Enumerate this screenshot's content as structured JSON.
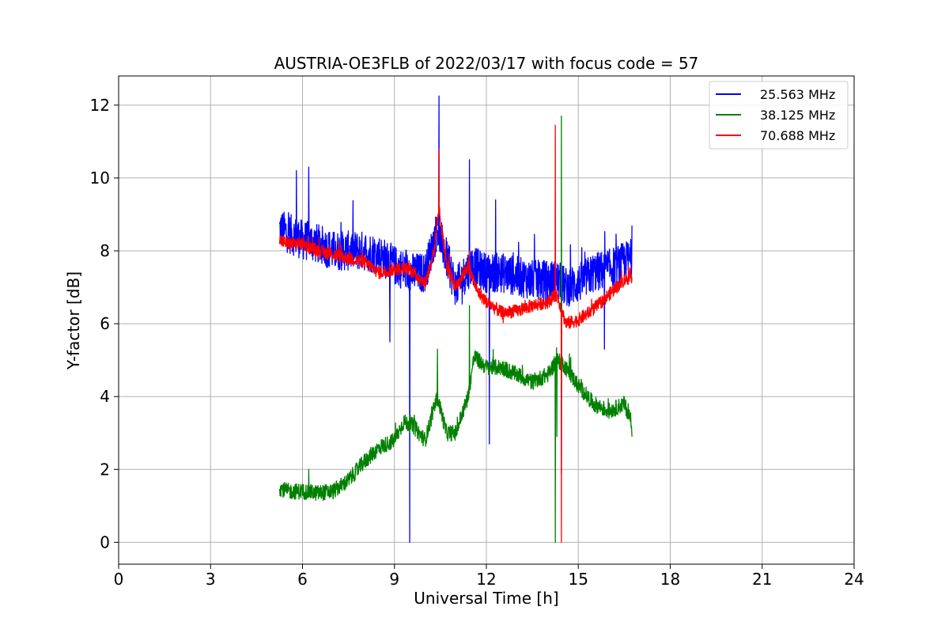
{
  "chart_data": {
    "type": "line",
    "title": "AUSTRIA-OE3FLB of 2022/03/17 with focus code = 57",
    "xlabel": "Universal Time [h]",
    "ylabel": "Y-factor [dB]",
    "xlim": [
      0,
      24
    ],
    "ylim": [
      -0.6,
      12.8
    ],
    "xticks": [
      0,
      3,
      6,
      9,
      12,
      15,
      18,
      21,
      24
    ],
    "yticks": [
      0,
      2,
      4,
      6,
      8,
      10,
      12
    ],
    "grid": true,
    "legend_position": "top-right",
    "series": [
      {
        "name": "25.563 MHz",
        "color": "#0000ff",
        "noise": 0.55,
        "points": [
          [
            5.25,
            8.6
          ],
          [
            5.5,
            8.5
          ],
          [
            6.0,
            8.3
          ],
          [
            6.5,
            8.2
          ],
          [
            7.0,
            8.0
          ],
          [
            7.5,
            8.0
          ],
          [
            8.0,
            8.0
          ],
          [
            8.5,
            7.9
          ],
          [
            9.0,
            7.6
          ],
          [
            9.5,
            7.4
          ],
          [
            10.0,
            7.4
          ],
          [
            10.4,
            8.6
          ],
          [
            10.7,
            7.8
          ],
          [
            11.0,
            7.0
          ],
          [
            11.5,
            7.6
          ],
          [
            12.0,
            7.4
          ],
          [
            12.5,
            7.4
          ],
          [
            13.0,
            7.3
          ],
          [
            13.5,
            7.2
          ],
          [
            14.0,
            7.2
          ],
          [
            14.3,
            7.2
          ],
          [
            14.6,
            7.0
          ],
          [
            15.0,
            7.1
          ],
          [
            15.5,
            7.4
          ],
          [
            16.0,
            7.5
          ],
          [
            16.5,
            7.7
          ],
          [
            16.75,
            7.8
          ]
        ],
        "spikes": [
          [
            9.5,
            0.0
          ],
          [
            10.45,
            12.25
          ],
          [
            11.45,
            10.5
          ],
          [
            12.1,
            2.7
          ],
          [
            14.45,
            1.9
          ],
          [
            15.85,
            5.3
          ],
          [
            8.85,
            5.5
          ],
          [
            6.2,
            10.3
          ],
          [
            5.8,
            10.2
          ],
          [
            12.3,
            9.4
          ]
        ]
      },
      {
        "name": "38.125 MHz",
        "color": "#008000",
        "noise": 0.22,
        "points": [
          [
            5.25,
            1.5
          ],
          [
            5.5,
            1.4
          ],
          [
            6.0,
            1.4
          ],
          [
            6.5,
            1.35
          ],
          [
            7.0,
            1.4
          ],
          [
            7.5,
            1.7
          ],
          [
            8.0,
            2.2
          ],
          [
            8.5,
            2.6
          ],
          [
            9.0,
            2.8
          ],
          [
            9.3,
            3.3
          ],
          [
            9.6,
            3.2
          ],
          [
            10.0,
            2.8
          ],
          [
            10.4,
            4.0
          ],
          [
            10.7,
            3.0
          ],
          [
            11.0,
            3.0
          ],
          [
            11.4,
            4.0
          ],
          [
            11.6,
            5.1
          ],
          [
            12.0,
            4.8
          ],
          [
            12.5,
            4.8
          ],
          [
            13.0,
            4.6
          ],
          [
            13.5,
            4.4
          ],
          [
            14.0,
            4.6
          ],
          [
            14.3,
            5.0
          ],
          [
            14.5,
            4.9
          ],
          [
            15.0,
            4.3
          ],
          [
            15.5,
            3.8
          ],
          [
            16.0,
            3.6
          ],
          [
            16.5,
            3.8
          ],
          [
            16.75,
            3.3
          ]
        ],
        "spikes": [
          [
            14.25,
            0.0
          ],
          [
            14.45,
            11.7
          ],
          [
            14.3,
            2.9
          ],
          [
            10.4,
            5.3
          ],
          [
            11.45,
            6.5
          ],
          [
            6.2,
            2.0
          ],
          [
            16.75,
            2.9
          ]
        ]
      },
      {
        "name": "70.688 MHz",
        "color": "#ff0000",
        "noise": 0.18,
        "points": [
          [
            5.25,
            8.3
          ],
          [
            5.5,
            8.2
          ],
          [
            6.0,
            8.2
          ],
          [
            6.5,
            8.0
          ],
          [
            7.0,
            7.9
          ],
          [
            7.5,
            7.8
          ],
          [
            8.0,
            7.7
          ],
          [
            8.5,
            7.4
          ],
          [
            9.0,
            7.5
          ],
          [
            9.5,
            7.5
          ],
          [
            10.0,
            7.1
          ],
          [
            10.3,
            8.0
          ],
          [
            10.45,
            9.2
          ],
          [
            10.7,
            7.6
          ],
          [
            11.0,
            7.0
          ],
          [
            11.4,
            7.6
          ],
          [
            11.7,
            6.9
          ],
          [
            12.0,
            6.6
          ],
          [
            12.5,
            6.3
          ],
          [
            13.0,
            6.35
          ],
          [
            13.5,
            6.5
          ],
          [
            14.0,
            6.6
          ],
          [
            14.3,
            6.8
          ],
          [
            14.6,
            6.0
          ],
          [
            15.0,
            6.1
          ],
          [
            15.5,
            6.4
          ],
          [
            16.0,
            6.8
          ],
          [
            16.5,
            7.2
          ],
          [
            16.75,
            7.3
          ]
        ],
        "spikes": [
          [
            14.25,
            11.45
          ],
          [
            14.45,
            0.0
          ],
          [
            10.45,
            10.8
          ],
          [
            11.45,
            8.0
          ]
        ]
      }
    ]
  }
}
